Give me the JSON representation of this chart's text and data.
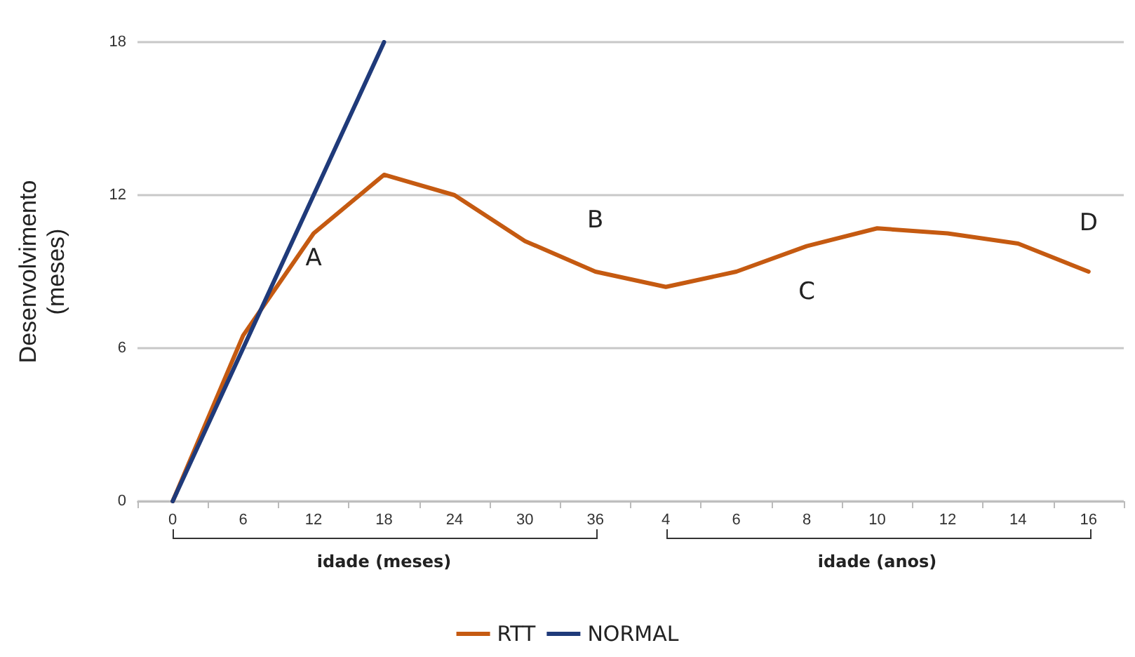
{
  "chart_data": {
    "type": "line",
    "ylabel": "Desenvolvimento\n(meses)",
    "categories": [
      "0",
      "6",
      "12",
      "18",
      "24",
      "30",
      "36",
      "4",
      "6",
      "8",
      "10",
      "12",
      "14",
      "16"
    ],
    "series": [
      {
        "name": "RTT",
        "color": "#c55a11",
        "values": [
          0,
          6.5,
          10.5,
          12.8,
          12.0,
          10.2,
          9.0,
          8.4,
          9.0,
          10.0,
          10.7,
          10.5,
          10.1,
          9.0
        ]
      },
      {
        "name": "NORMAL",
        "color": "#1f3a7a",
        "values": [
          0,
          6,
          12,
          18,
          null,
          null,
          null,
          null,
          null,
          null,
          null,
          null,
          null,
          null
        ]
      }
    ],
    "ylim": [
      0,
      18
    ],
    "yticks": [
      0,
      6,
      12,
      18
    ],
    "grid": "y",
    "legend": "bottom",
    "marker": "none",
    "line_style": "solid",
    "annotations": [
      "A",
      "B",
      "C",
      "D",
      "idade (meses)",
      "idade (anos)"
    ]
  }
}
